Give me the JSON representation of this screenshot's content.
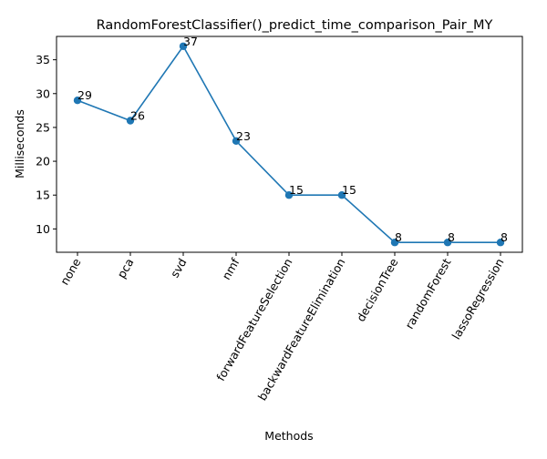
{
  "chart_data": {
    "type": "line",
    "title": "RandomForestClassifier()_predict_time_comparison_Pair_MY",
    "xlabel": "Methods",
    "ylabel": "Milliseconds",
    "categories": [
      "none",
      "pca",
      "svd",
      "nmf",
      "forwardFeatureSelection",
      "backwardFeatureElimination",
      "decisionTree",
      "randomForest",
      "lassoRegression"
    ],
    "values": [
      29,
      26,
      37,
      23,
      15,
      15,
      8,
      8,
      8
    ],
    "data_labels": [
      "29",
      "26",
      "37",
      "23",
      "15",
      "15",
      "8",
      "8",
      "8"
    ],
    "ylim": [
      6.55,
      38.45
    ],
    "yticks": [
      10,
      15,
      20,
      25,
      30,
      35
    ],
    "ytick_labels": [
      "10",
      "15",
      "20",
      "25",
      "30",
      "35"
    ],
    "grid": false,
    "legend": "none",
    "series_color": "#1f77b4",
    "marker": "circle"
  }
}
